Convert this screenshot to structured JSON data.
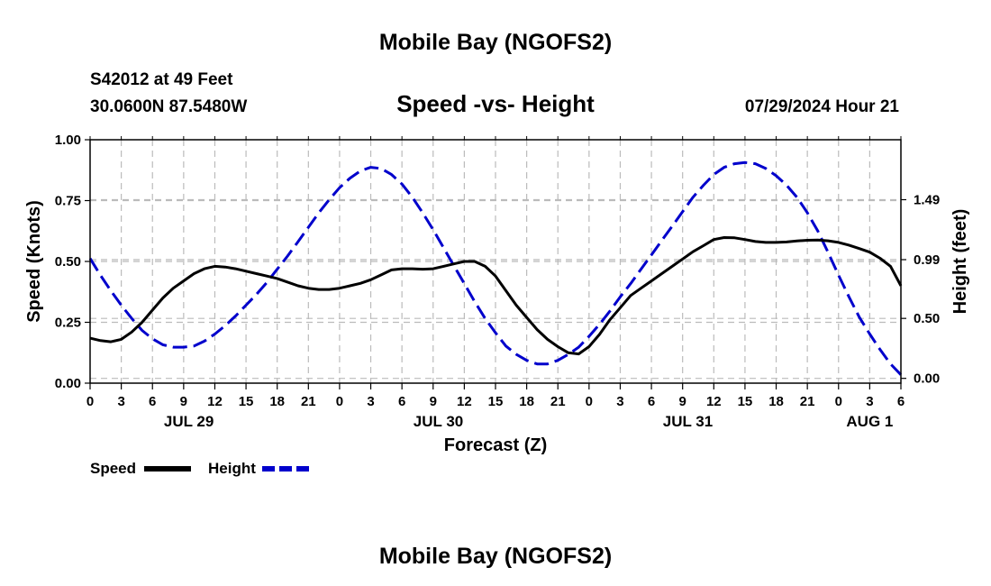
{
  "header": {
    "title": "Mobile Bay (NGOFS2)",
    "station": "S42012 at 49 Feet",
    "coords": "30.0600N  87.5480W",
    "subtitle": "Speed -vs- Height",
    "run": "07/29/2024 Hour 21"
  },
  "legend": {
    "speed_label": "Speed",
    "height_label": "Height"
  },
  "footer": {
    "title": "Mobile Bay (NGOFS2)"
  },
  "colors": {
    "speed": "#000000",
    "height": "#0000cc",
    "grid": "#bbbbbb"
  },
  "chart_data": {
    "type": "line",
    "title": "Speed -vs- Height",
    "xlabel": "Forecast (Z)",
    "ylabel_left": "Speed (Knots)",
    "ylabel_right": "Height (feet)",
    "xlim": [
      0,
      78
    ],
    "ylim_left": [
      0,
      1.0
    ],
    "ylim_right": [
      -0.04,
      1.99
    ],
    "x_ticks": [
      0,
      3,
      6,
      9,
      12,
      15,
      18,
      21,
      24,
      27,
      30,
      33,
      36,
      39,
      42,
      45,
      48,
      51,
      54,
      57,
      60,
      63,
      66,
      69,
      72,
      75,
      78
    ],
    "x_tick_labels": [
      "0",
      "3",
      "6",
      "9",
      "12",
      "15",
      "18",
      "21",
      "0",
      "3",
      "6",
      "9",
      "12",
      "15",
      "18",
      "21",
      "0",
      "3",
      "6",
      "9",
      "12",
      "15",
      "18",
      "21",
      "0",
      "3",
      "6"
    ],
    "date_labels": [
      {
        "label": "JUL 29",
        "x": 9.5
      },
      {
        "label": "JUL 30",
        "x": 33.5
      },
      {
        "label": "JUL 31",
        "x": 57.5
      },
      {
        "label": "AUG 1",
        "x": 75
      }
    ],
    "y_left_ticks": [
      0.0,
      0.25,
      0.5,
      0.75,
      1.0
    ],
    "y_left_tick_labels": [
      "0.00",
      "0.25",
      "0.50",
      "0.75",
      "1.00"
    ],
    "y_right_ticks": [
      0.0,
      0.5,
      0.99,
      1.49
    ],
    "y_right_tick_labels": [
      "0.00",
      "0.50",
      "0.99",
      "1.49"
    ],
    "series": [
      {
        "name": "Speed",
        "axis": "left",
        "style": "solid",
        "x": [
          0,
          1,
          2,
          3,
          4,
          5,
          6,
          7,
          8,
          9,
          10,
          11,
          12,
          13,
          14,
          15,
          16,
          17,
          18,
          19,
          20,
          21,
          22,
          23,
          24,
          25,
          26,
          27,
          28,
          29,
          30,
          31,
          32,
          33,
          34,
          35,
          36,
          37,
          38,
          39,
          40,
          41,
          42,
          43,
          44,
          45,
          46,
          47,
          48,
          49,
          50,
          51,
          52,
          53,
          54,
          55,
          56,
          57,
          58,
          59,
          60,
          61,
          62,
          63,
          64,
          65,
          66,
          67,
          68,
          69,
          70,
          71,
          72,
          73,
          74,
          75,
          76,
          77,
          78
        ],
        "values": [
          0.185,
          0.175,
          0.17,
          0.18,
          0.21,
          0.25,
          0.3,
          0.35,
          0.39,
          0.42,
          0.45,
          0.47,
          0.48,
          0.477,
          0.47,
          0.46,
          0.45,
          0.44,
          0.43,
          0.415,
          0.4,
          0.39,
          0.385,
          0.385,
          0.39,
          0.4,
          0.41,
          0.425,
          0.445,
          0.465,
          0.47,
          0.47,
          0.468,
          0.47,
          0.48,
          0.49,
          0.5,
          0.5,
          0.48,
          0.44,
          0.38,
          0.32,
          0.27,
          0.22,
          0.18,
          0.15,
          0.125,
          0.12,
          0.15,
          0.2,
          0.26,
          0.31,
          0.36,
          0.39,
          0.42,
          0.45,
          0.48,
          0.51,
          0.54,
          0.565,
          0.59,
          0.598,
          0.597,
          0.59,
          0.582,
          0.578,
          0.578,
          0.58,
          0.584,
          0.587,
          0.588,
          0.585,
          0.578,
          0.567,
          0.553,
          0.538,
          0.513,
          0.48,
          0.4
        ]
      },
      {
        "name": "Height",
        "axis": "right",
        "style": "dashed",
        "x": [
          0,
          1,
          2,
          3,
          4,
          5,
          6,
          7,
          8,
          9,
          10,
          11,
          12,
          13,
          14,
          15,
          16,
          17,
          18,
          19,
          20,
          21,
          22,
          23,
          24,
          25,
          26,
          27,
          28,
          29,
          30,
          31,
          32,
          33,
          34,
          35,
          36,
          37,
          38,
          39,
          40,
          41,
          42,
          43,
          44,
          45,
          46,
          47,
          48,
          49,
          50,
          51,
          52,
          53,
          54,
          55,
          56,
          57,
          58,
          59,
          60,
          61,
          62,
          63,
          64,
          65,
          66,
          67,
          68,
          69,
          70,
          71,
          72,
          73,
          74,
          75,
          76,
          77,
          78
        ],
        "values": [
          1.0,
          0.86,
          0.73,
          0.61,
          0.5,
          0.4,
          0.33,
          0.28,
          0.26,
          0.26,
          0.27,
          0.31,
          0.37,
          0.44,
          0.52,
          0.61,
          0.7,
          0.8,
          0.91,
          1.02,
          1.14,
          1.26,
          1.38,
          1.49,
          1.59,
          1.67,
          1.73,
          1.76,
          1.75,
          1.7,
          1.62,
          1.51,
          1.38,
          1.24,
          1.09,
          0.94,
          0.79,
          0.64,
          0.5,
          0.38,
          0.27,
          0.2,
          0.15,
          0.12,
          0.12,
          0.15,
          0.2,
          0.26,
          0.35,
          0.45,
          0.56,
          0.68,
          0.79,
          0.91,
          1.03,
          1.15,
          1.27,
          1.39,
          1.51,
          1.61,
          1.7,
          1.76,
          1.79,
          1.8,
          1.79,
          1.75,
          1.69,
          1.61,
          1.51,
          1.38,
          1.23,
          1.05,
          0.86,
          0.68,
          0.51,
          0.37,
          0.24,
          0.12,
          0.03
        ]
      }
    ]
  }
}
